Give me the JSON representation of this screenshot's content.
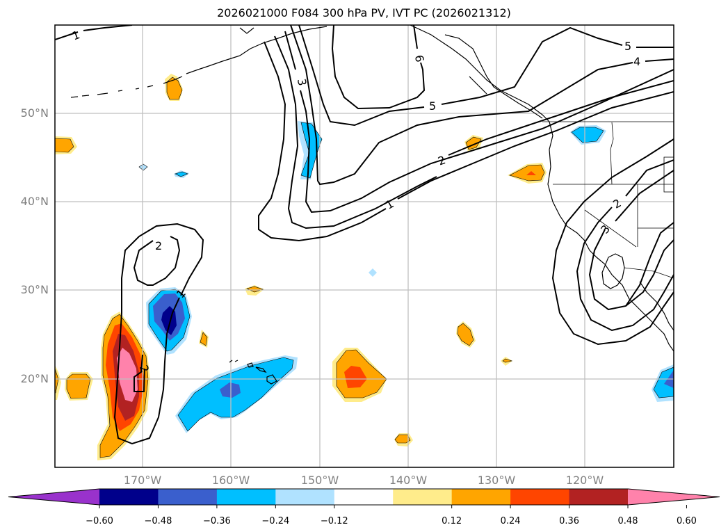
{
  "title": "2026021000 F084 300 hPa PV, IVT PC (2026021312)",
  "chart_data": {
    "type": "map",
    "title": "2026021000 F084 300 hPa PV, IVT PC (2026021312)",
    "lon_ticks": [
      "170°W",
      "160°W",
      "150°W",
      "140°W",
      "130°W",
      "120°W"
    ],
    "lat_ticks": [
      "50°N",
      "40°N",
      "30°N",
      "20°N"
    ],
    "lon_values": [
      -170,
      -160,
      -150,
      -140,
      -130,
      -120
    ],
    "lat_values": [
      50,
      40,
      30,
      20
    ],
    "extent": {
      "lon": [
        -180,
        -110
      ],
      "lat": [
        10,
        60
      ]
    },
    "grid": true,
    "colorbar": {
      "orientation": "horizontal",
      "extend": "both",
      "ticks": [
        "−0.60",
        "−0.48",
        "−0.36",
        "−0.24",
        "−0.12",
        "0.12",
        "0.24",
        "0.36",
        "0.48",
        "0.60"
      ],
      "levels": [
        -0.6,
        -0.48,
        -0.36,
        -0.24,
        -0.12,
        0.12,
        0.24,
        0.36,
        0.48,
        0.6
      ],
      "colors": [
        "#9932CC",
        "#00008B",
        "#3A5FCD",
        "#00BFFF",
        "#B0E2FF",
        "#FFFFFF",
        "#FFEC8B",
        "#FFA500",
        "#FF4500",
        "#B22222",
        "#FF82AB"
      ]
    },
    "contour_labels": [
      "1",
      "3",
      "6",
      "5",
      "2",
      "1",
      "5",
      "4",
      "2",
      "3",
      "2",
      "2",
      "1",
      "2"
    ],
    "contour_levels": [
      1,
      2,
      3,
      4,
      5,
      6
    ]
  }
}
